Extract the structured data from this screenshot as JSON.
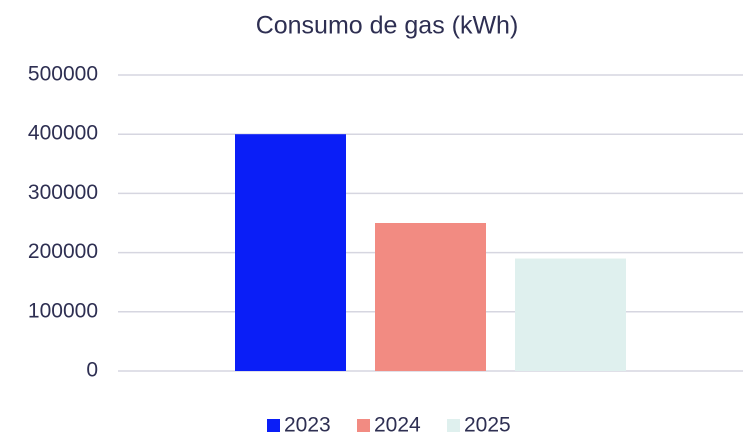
{
  "chart_data": {
    "type": "bar",
    "title": "Consumo de gas (kWh)",
    "categories": [
      null
    ],
    "series": [
      {
        "name": "2023",
        "color": "#0a1ef7",
        "values": [
          400000
        ]
      },
      {
        "name": "2024",
        "color": "#f28b82",
        "values": [
          250000
        ]
      },
      {
        "name": "2025",
        "color": "#dff0ee",
        "values": [
          190000
        ]
      }
    ],
    "ylim": [
      0,
      500000
    ],
    "yticks": [
      0,
      100000,
      200000,
      300000,
      400000,
      500000
    ],
    "grid": true,
    "legend": "bottom"
  }
}
